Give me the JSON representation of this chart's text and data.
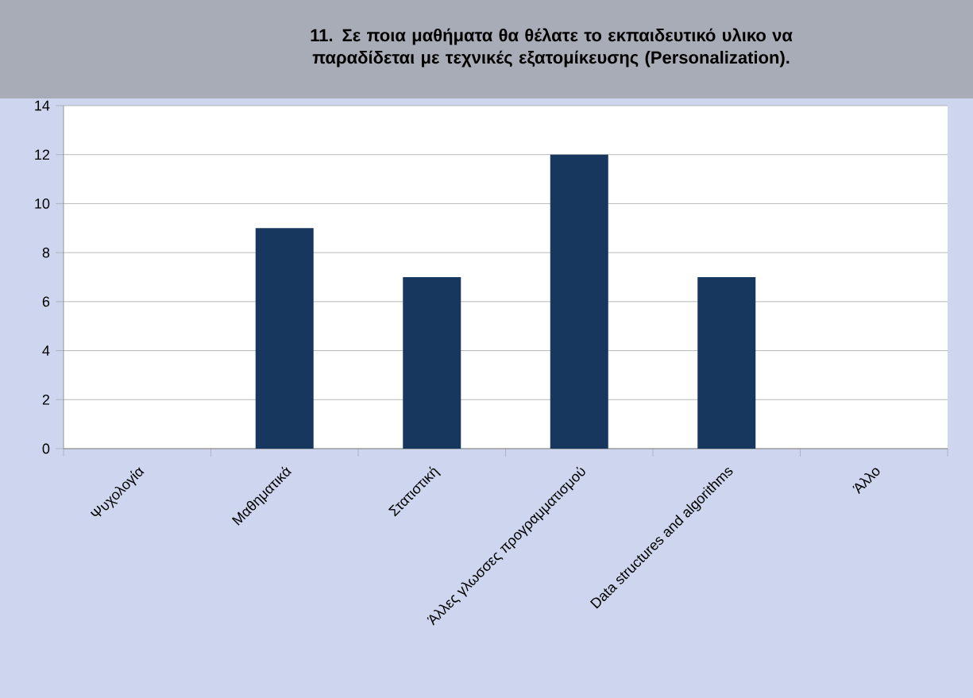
{
  "chart_data": {
    "type": "bar",
    "title": "11. Σε ποια μαθήματα θα θέλατε το εκπαιδευτικό υλικο να παραδίδεται με τεχνικές εξατομίκευσης (Personalization).",
    "categories": [
      "Ψυχολογία",
      "Μαθηματικά",
      "Στατιστική",
      "Άλλες γλωσσες προγραμματισμού",
      "Data structures and algorithms",
      "Άλλο"
    ],
    "values": [
      0,
      9,
      7,
      12,
      7,
      0
    ],
    "color": "#17375e",
    "ylim": [
      0,
      14
    ],
    "yticks": [
      0,
      2,
      4,
      6,
      8,
      10,
      12,
      14
    ],
    "grid": "y"
  }
}
